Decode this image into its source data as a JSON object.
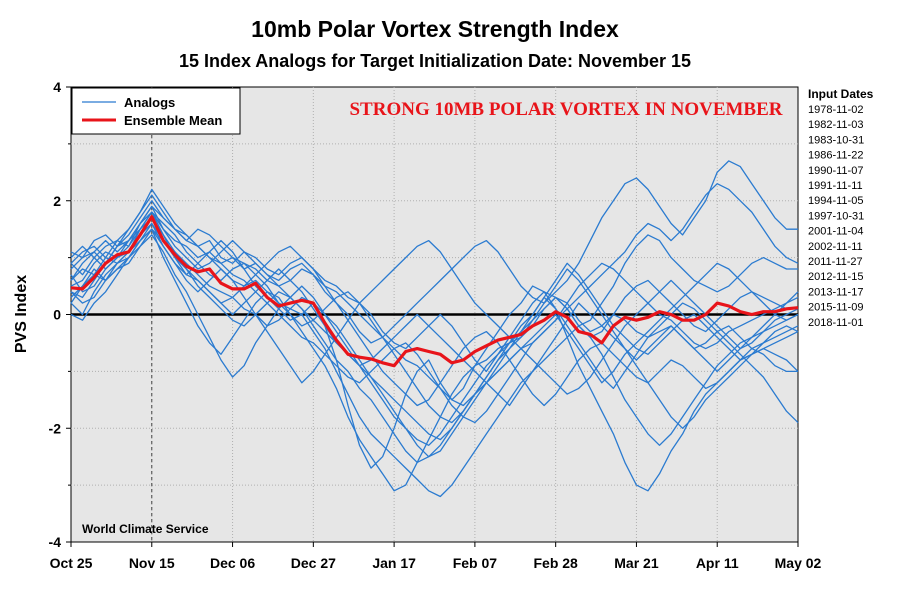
{
  "chart_data": {
    "type": "line",
    "title": "10mb Polar Vortex Strength Index",
    "subtitle": "15 Index Analogs for Target Initialization Date: November 15",
    "ylabel": "PVS Index",
    "xlabel": "",
    "ylim": [
      -4,
      4
    ],
    "yticks": [
      -4,
      -2,
      0,
      2,
      4
    ],
    "xdomain_days": [
      0,
      189
    ],
    "xticks": [
      {
        "label": "Oct 25",
        "day": 0
      },
      {
        "label": "Nov 15",
        "day": 21
      },
      {
        "label": "Dec 06",
        "day": 42
      },
      {
        "label": "Dec 27",
        "day": 63
      },
      {
        "label": "Jan 17",
        "day": 84
      },
      {
        "label": "Feb 07",
        "day": 105
      },
      {
        "label": "Feb 28",
        "day": 126
      },
      {
        "label": "Mar 21",
        "day": 147
      },
      {
        "label": "Apr 11",
        "day": 168
      },
      {
        "label": "May 02",
        "day": 189
      }
    ],
    "target_marker": {
      "label": "Nov 15",
      "day": 21
    },
    "grid": true,
    "legend": {
      "placement": "top-left",
      "entries": [
        {
          "label": "Analogs",
          "color": "#2b7bd0"
        },
        {
          "label": "Ensemble Mean",
          "color": "#e8141a"
        }
      ]
    },
    "banner": "STRONG 10MB POLAR VORTEX IN NOVEMBER",
    "credit": "World Climate Service",
    "input_dates_label": "Input Dates",
    "input_dates": [
      "1978-11-02",
      "1982-11-03",
      "1983-10-31",
      "1986-11-22",
      "1990-11-07",
      "1991-11-11",
      "1994-11-05",
      "1997-10-31",
      "2001-11-04",
      "2002-11-11",
      "2011-11-27",
      "2012-11-15",
      "2013-11-17",
      "2015-11-09",
      "2018-11-01"
    ],
    "ensemble_mean": {
      "x": [
        0,
        3,
        6,
        9,
        12,
        15,
        18,
        21,
        24,
        27,
        30,
        33,
        36,
        39,
        42,
        45,
        48,
        51,
        54,
        57,
        60,
        63,
        66,
        69,
        72,
        75,
        78,
        81,
        84,
        87,
        90,
        93,
        96,
        99,
        102,
        105,
        108,
        111,
        114,
        117,
        120,
        123,
        126,
        129,
        132,
        135,
        138,
        141,
        144,
        147,
        150,
        153,
        156,
        159,
        162,
        165,
        168,
        171,
        174,
        177,
        180,
        183,
        186,
        189
      ],
      "y": [
        0.47,
        0.45,
        0.65,
        0.9,
        1.05,
        1.1,
        1.4,
        1.72,
        1.3,
        1.05,
        0.85,
        0.75,
        0.8,
        0.55,
        0.45,
        0.45,
        0.55,
        0.3,
        0.15,
        0.2,
        0.25,
        0.2,
        -0.15,
        -0.45,
        -0.7,
        -0.75,
        -0.78,
        -0.85,
        -0.9,
        -0.65,
        -0.6,
        -0.65,
        -0.7,
        -0.85,
        -0.8,
        -0.65,
        -0.55,
        -0.45,
        -0.4,
        -0.35,
        -0.2,
        -0.1,
        0.05,
        -0.05,
        -0.3,
        -0.35,
        -0.5,
        -0.2,
        -0.05,
        -0.1,
        -0.05,
        0.05,
        0.0,
        -0.1,
        -0.1,
        0.0,
        0.2,
        0.15,
        0.05,
        0.0,
        0.05,
        0.05,
        0.1,
        0.12
      ]
    },
    "series_color": "#2b7bd0",
    "mean_color": "#e8141a",
    "series": [
      {
        "y": [
          0.9,
          0.7,
          1.0,
          1.2,
          1.3,
          1.2,
          1.6,
          1.9,
          1.5,
          1.3,
          1.2,
          1.0,
          1.1,
          0.9,
          1.0,
          0.8,
          0.9,
          0.7,
          0.6,
          0.8,
          0.9,
          0.7,
          0.4,
          0.2,
          0.0,
          -0.3,
          -0.5,
          -0.4,
          -0.2,
          0.0,
          0.2,
          0.4,
          0.6,
          0.8,
          1.0,
          1.2,
          1.3,
          1.1,
          0.8,
          0.5,
          0.3,
          0.2,
          0.4,
          0.6,
          0.9,
          1.3,
          1.7,
          2.0,
          2.3,
          2.4,
          2.2,
          1.9,
          1.6,
          1.4,
          1.7,
          2.0,
          2.5,
          2.7,
          2.6,
          2.3,
          2.0,
          1.7,
          1.5,
          1.5
        ]
      },
      {
        "y": [
          0.3,
          0.5,
          0.8,
          0.6,
          0.9,
          1.1,
          1.3,
          1.6,
          1.2,
          0.9,
          0.7,
          0.6,
          0.4,
          0.2,
          0.3,
          0.1,
          0.0,
          -0.2,
          -0.1,
          0.1,
          0.3,
          0.2,
          -0.2,
          -0.8,
          -1.6,
          -2.3,
          -2.7,
          -2.5,
          -2.0,
          -1.4,
          -1.0,
          -0.8,
          -1.2,
          -1.5,
          -1.3,
          -0.9,
          -0.6,
          -0.3,
          0.0,
          0.2,
          0.5,
          0.4,
          0.1,
          -0.4,
          -0.9,
          -1.3,
          -1.7,
          -2.1,
          -2.6,
          -3.0,
          -3.1,
          -2.8,
          -2.4,
          -2.1,
          -1.7,
          -1.4,
          -1.2,
          -1.0,
          -0.8,
          -0.7,
          -0.6,
          -0.7,
          -0.8,
          -1.0
        ]
      },
      {
        "y": [
          1.1,
          1.0,
          1.3,
          1.4,
          1.2,
          1.5,
          1.8,
          2.1,
          1.8,
          1.5,
          1.4,
          1.2,
          1.3,
          1.0,
          0.9,
          1.1,
          1.0,
          0.8,
          0.7,
          0.9,
          1.0,
          0.8,
          0.6,
          0.5,
          0.3,
          0.2,
          0.0,
          -0.3,
          -0.5,
          -0.6,
          -0.4,
          -0.2,
          0.0,
          -0.2,
          -0.5,
          -0.8,
          -1.0,
          -0.7,
          -0.4,
          -0.1,
          0.2,
          0.4,
          0.3,
          0.1,
          -0.2,
          -0.1,
          0.2,
          0.5,
          0.9,
          1.2,
          1.4,
          1.3,
          1.0,
          0.8,
          0.6,
          0.5,
          0.4,
          0.5,
          0.7,
          0.9,
          1.0,
          0.9,
          0.8,
          0.8
        ]
      },
      {
        "y": [
          0.2,
          0.0,
          0.4,
          0.7,
          0.9,
          1.0,
          1.3,
          1.5,
          1.0,
          0.6,
          0.2,
          -0.2,
          -0.5,
          -0.7,
          -0.4,
          -0.1,
          0.2,
          0.4,
          0.3,
          0.0,
          -0.3,
          -0.6,
          -0.9,
          -1.3,
          -1.8,
          -2.2,
          -2.5,
          -2.8,
          -3.1,
          -3.0,
          -2.6,
          -2.2,
          -1.8,
          -1.4,
          -1.1,
          -0.9,
          -0.8,
          -0.6,
          -0.5,
          -0.4,
          -0.2,
          0.1,
          0.3,
          0.2,
          -0.1,
          -0.3,
          -0.2,
          0.0,
          -0.1,
          -0.3,
          -0.4,
          -0.3,
          -0.2,
          -0.4,
          -0.6,
          -0.5,
          -0.3,
          -0.2,
          -0.4,
          -0.6,
          -0.5,
          -0.3,
          -0.2,
          -0.3
        ]
      },
      {
        "y": [
          0.5,
          0.6,
          0.9,
          1.1,
          1.0,
          1.2,
          1.5,
          1.8,
          1.6,
          1.4,
          1.1,
          0.9,
          0.7,
          0.6,
          0.8,
          0.9,
          0.7,
          0.5,
          0.2,
          0.0,
          -0.2,
          -0.1,
          0.1,
          0.3,
          0.4,
          0.2,
          -0.1,
          -0.4,
          -0.7,
          -1.0,
          -1.3,
          -1.6,
          -1.8,
          -1.9,
          -1.7,
          -1.4,
          -1.1,
          -0.8,
          -0.6,
          -0.4,
          -0.1,
          0.1,
          0.3,
          0.1,
          -0.2,
          -0.4,
          -0.3,
          0.0,
          0.3,
          0.5,
          0.6,
          0.4,
          0.2,
          0.0,
          -0.2,
          -0.3,
          -0.1,
          0.1,
          0.3,
          0.4,
          0.2,
          0.0,
          -0.1,
          0.0
        ]
      },
      {
        "y": [
          0.8,
          1.0,
          1.1,
          0.9,
          1.2,
          1.4,
          1.7,
          2.0,
          1.7,
          1.5,
          1.3,
          1.2,
          1.0,
          0.8,
          0.6,
          0.5,
          0.7,
          0.9,
          1.1,
          1.2,
          1.0,
          0.8,
          0.5,
          0.2,
          -0.1,
          -0.4,
          -0.7,
          -1.0,
          -1.2,
          -1.4,
          -1.6,
          -1.5,
          -1.2,
          -0.9,
          -0.6,
          -0.4,
          -0.3,
          -0.5,
          -0.8,
          -1.1,
          -1.4,
          -1.6,
          -1.4,
          -1.1,
          -0.8,
          -0.6,
          -0.5,
          -0.7,
          -0.9,
          -1.1,
          -1.2,
          -1.0,
          -0.8,
          -0.9,
          -1.1,
          -1.3,
          -1.2,
          -1.0,
          -0.8,
          -0.6,
          -0.7,
          -0.9,
          -1.0,
          -1.0
        ]
      },
      {
        "y": [
          0.4,
          0.3,
          0.6,
          0.9,
          1.2,
          1.3,
          1.5,
          1.7,
          1.4,
          1.0,
          0.8,
          0.5,
          0.3,
          0.1,
          -0.1,
          -0.2,
          0.0,
          0.2,
          0.4,
          0.3,
          0.1,
          -0.2,
          -0.5,
          -0.8,
          -1.0,
          -1.3,
          -1.5,
          -1.8,
          -2.1,
          -2.4,
          -2.6,
          -2.5,
          -2.3,
          -2.0,
          -1.7,
          -1.4,
          -1.2,
          -1.0,
          -0.8,
          -0.6,
          -0.5,
          -0.3,
          -0.1,
          0.2,
          0.5,
          0.7,
          0.9,
          0.8,
          0.6,
          0.4,
          0.2,
          0.0,
          -0.1,
          -0.3,
          -0.5,
          -0.6,
          -0.5,
          -0.3,
          -0.2,
          -0.1,
          0.0,
          0.1,
          0.2,
          0.3
        ]
      },
      {
        "y": [
          0.6,
          0.8,
          0.7,
          1.0,
          1.3,
          1.5,
          1.8,
          2.2,
          1.9,
          1.6,
          1.4,
          1.2,
          1.0,
          0.9,
          0.7,
          0.6,
          0.4,
          0.2,
          0.0,
          -0.2,
          -0.4,
          -0.5,
          -0.7,
          -0.9,
          -1.1,
          -1.2,
          -1.0,
          -0.8,
          -0.6,
          -0.5,
          -0.7,
          -1.0,
          -1.3,
          -1.6,
          -1.8,
          -1.9,
          -1.7,
          -1.4,
          -1.1,
          -0.8,
          -0.5,
          -0.3,
          -0.1,
          0.1,
          0.3,
          0.5,
          0.7,
          0.9,
          1.1,
          1.4,
          1.6,
          1.5,
          1.3,
          1.5,
          1.8,
          2.1,
          2.3,
          2.2,
          2.0,
          1.8,
          1.5,
          1.2,
          1.0,
          0.9
        ]
      },
      {
        "y": [
          0.0,
          -0.1,
          0.2,
          0.4,
          0.7,
          1.0,
          1.2,
          1.4,
          1.1,
          0.7,
          0.4,
          0.0,
          -0.4,
          -0.8,
          -1.1,
          -0.9,
          -0.5,
          -0.2,
          0.1,
          0.3,
          0.5,
          0.3,
          0.0,
          -0.3,
          -0.6,
          -0.9,
          -1.2,
          -1.5,
          -1.8,
          -2.0,
          -2.2,
          -2.3,
          -2.1,
          -1.8,
          -1.5,
          -1.2,
          -0.9,
          -0.7,
          -0.5,
          -0.3,
          -0.1,
          0.2,
          0.5,
          0.8,
          0.6,
          0.3,
          0.0,
          -0.3,
          -0.6,
          -0.9,
          -1.2,
          -1.5,
          -1.8,
          -2.0,
          -1.8,
          -1.5,
          -1.3,
          -1.1,
          -0.9,
          -0.7,
          -0.6,
          -0.5,
          -0.4,
          -0.3
        ]
      },
      {
        "y": [
          1.0,
          1.2,
          1.0,
          0.8,
          1.0,
          1.3,
          1.6,
          1.9,
          1.7,
          1.5,
          1.3,
          1.5,
          1.4,
          1.2,
          1.0,
          0.9,
          0.8,
          0.6,
          0.5,
          0.6,
          0.8,
          0.7,
          0.5,
          0.4,
          0.2,
          0.0,
          -0.2,
          -0.4,
          -0.6,
          -0.8,
          -0.9,
          -1.1,
          -1.3,
          -1.5,
          -1.6,
          -1.4,
          -1.2,
          -1.0,
          -0.8,
          -0.6,
          -0.4,
          -0.2,
          0.0,
          -0.3,
          -0.6,
          -0.9,
          -1.2,
          -1.0,
          -0.7,
          -0.5,
          -0.3,
          -0.1,
          0.1,
          0.3,
          0.5,
          0.7,
          0.9,
          0.8,
          0.6,
          0.4,
          0.3,
          0.2,
          0.1,
          0.1
        ]
      },
      {
        "y": [
          0.7,
          0.4,
          0.5,
          0.8,
          1.0,
          1.1,
          1.4,
          1.6,
          1.3,
          1.1,
          0.9,
          0.7,
          0.5,
          0.4,
          0.3,
          0.5,
          0.6,
          0.4,
          0.2,
          0.1,
          0.0,
          -0.3,
          -0.6,
          -1.0,
          -1.4,
          -1.8,
          -2.1,
          -2.3,
          -2.5,
          -2.7,
          -2.9,
          -3.1,
          -3.2,
          -3.0,
          -2.7,
          -2.4,
          -2.1,
          -1.8,
          -1.5,
          -1.2,
          -1.0,
          -0.8,
          -0.6,
          -0.4,
          -0.2,
          -0.4,
          -0.7,
          -1.1,
          -1.5,
          -1.8,
          -2.1,
          -2.3,
          -2.1,
          -1.8,
          -1.5,
          -1.2,
          -0.9,
          -0.7,
          -0.5,
          -0.4,
          -0.3,
          -0.2,
          -0.1,
          0.0
        ]
      },
      {
        "y": [
          0.2,
          0.5,
          0.7,
          0.6,
          0.8,
          1.0,
          1.3,
          1.5,
          1.2,
          0.9,
          0.6,
          0.4,
          0.6,
          0.8,
          0.6,
          0.3,
          0.0,
          -0.3,
          -0.6,
          -0.9,
          -1.2,
          -1.0,
          -0.7,
          -0.4,
          -0.1,
          0.2,
          0.4,
          0.6,
          0.8,
          1.0,
          1.2,
          1.3,
          1.1,
          0.8,
          0.5,
          0.2,
          0.0,
          -0.2,
          -0.4,
          -0.6,
          -0.8,
          -1.0,
          -1.2,
          -1.4,
          -1.3,
          -1.1,
          -0.8,
          -0.5,
          -0.2,
          0.0,
          0.2,
          0.4,
          0.6,
          0.4,
          0.2,
          0.0,
          -0.2,
          -0.4,
          -0.6,
          -0.5,
          -0.3,
          -0.1,
          0.0,
          0.1
        ]
      },
      {
        "y": [
          0.9,
          1.1,
          1.2,
          1.0,
          0.9,
          1.1,
          1.5,
          1.8,
          1.5,
          1.2,
          1.0,
          0.8,
          0.9,
          1.1,
          1.3,
          1.1,
          0.9,
          0.7,
          0.5,
          0.3,
          0.1,
          -0.1,
          -0.3,
          -0.5,
          -0.7,
          -0.9,
          -1.1,
          -1.3,
          -1.5,
          -1.7,
          -1.9,
          -2.1,
          -2.2,
          -2.0,
          -1.7,
          -1.4,
          -1.1,
          -0.8,
          -0.5,
          -0.2,
          0.0,
          0.3,
          0.6,
          0.9,
          0.7,
          0.4,
          0.1,
          -0.2,
          -0.4,
          -0.6,
          -0.7,
          -0.5,
          -0.3,
          -0.1,
          0.0,
          -0.2,
          -0.4,
          -0.6,
          -0.8,
          -0.7,
          -0.5,
          -0.4,
          -0.3,
          -0.2
        ]
      },
      {
        "y": [
          0.4,
          0.2,
          0.3,
          0.6,
          0.8,
          0.9,
          1.2,
          1.5,
          1.3,
          1.0,
          0.7,
          0.9,
          1.1,
          1.3,
          1.1,
          0.8,
          0.5,
          0.3,
          0.1,
          -0.1,
          0.0,
          0.2,
          0.0,
          -0.2,
          -0.5,
          -0.8,
          -1.1,
          -1.4,
          -1.7,
          -2.0,
          -2.3,
          -2.5,
          -2.4,
          -2.1,
          -1.8,
          -1.5,
          -1.2,
          -0.9,
          -0.6,
          -0.3,
          0.0,
          0.3,
          0.1,
          -0.2,
          -0.5,
          -0.8,
          -1.1,
          -1.3,
          -1.0,
          -0.7,
          -0.4,
          -0.2,
          0.0,
          0.2,
          0.1,
          -0.1,
          -0.3,
          -0.5,
          -0.7,
          -0.9,
          -1.1,
          -1.4,
          -1.7,
          -1.9
        ]
      },
      {
        "y": [
          0.6,
          0.9,
          1.1,
          1.3,
          1.1,
          1.3,
          1.6,
          1.8,
          1.4,
          1.1,
          0.8,
          0.6,
          0.4,
          0.2,
          0.0,
          0.2,
          0.4,
          0.6,
          0.8,
          0.6,
          0.4,
          0.1,
          -0.2,
          -0.5,
          -0.7,
          -0.9,
          -0.8,
          -0.6,
          -0.4,
          -0.2,
          0.0,
          -0.2,
          -0.4,
          -0.6,
          -0.8,
          -1.0,
          -1.2,
          -1.4,
          -1.6,
          -1.3,
          -1.0,
          -0.7,
          -0.4,
          -0.1,
          0.2,
          0.0,
          -0.2,
          -0.4,
          -0.6,
          -0.8,
          -0.6,
          -0.4,
          -0.2,
          -0.4,
          -0.6,
          -0.8,
          -1.0,
          -0.8,
          -0.6,
          -0.4,
          -0.2,
          0.0,
          0.2,
          0.4
        ]
      }
    ]
  }
}
